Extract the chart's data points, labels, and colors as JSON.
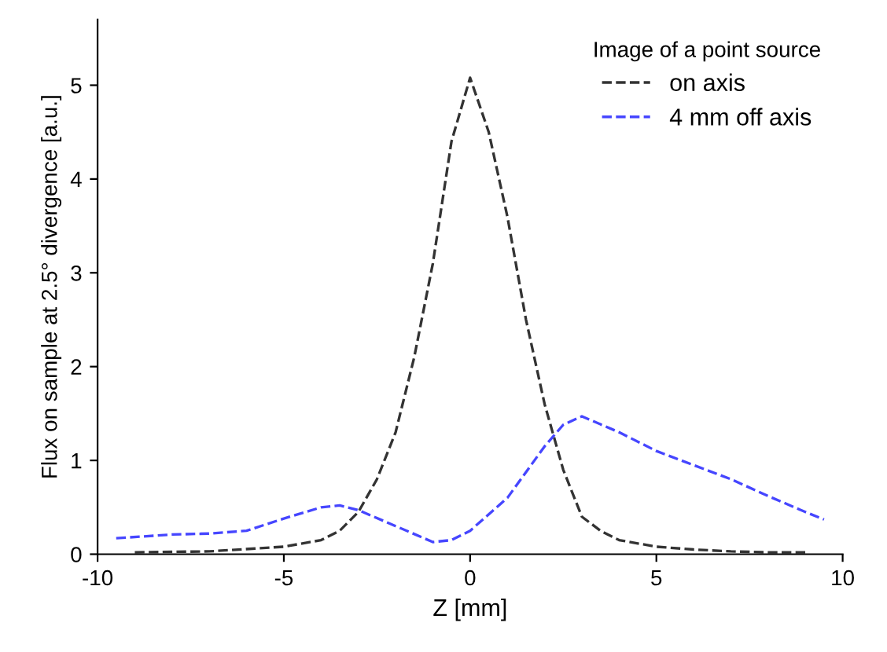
{
  "chart_data": {
    "type": "line",
    "xlabel": "Z [mm]",
    "ylabel": "Flux on sample at 2.5° divergence [a.u.]",
    "legend_title": "Image of a point source",
    "legend": "top right",
    "line_style": "dashed",
    "grid": false,
    "xlim": [
      -10,
      10
    ],
    "xticks": [
      -10,
      -5,
      0,
      5,
      10
    ],
    "ylim": [
      0,
      5.7
    ],
    "yticks": [
      0,
      1,
      2,
      3,
      4,
      5
    ],
    "series": [
      {
        "name": "on axis",
        "color": "#333333",
        "x": [
          -9,
          -7,
          -5,
          -4,
          -3.5,
          -3,
          -2.5,
          -2,
          -1.5,
          -1,
          -0.5,
          0,
          0.5,
          1,
          1.5,
          2,
          2.5,
          3,
          3.5,
          4,
          5,
          6,
          7,
          8,
          9
        ],
        "values": [
          0.02,
          0.03,
          0.08,
          0.15,
          0.25,
          0.45,
          0.8,
          1.3,
          2.1,
          3.1,
          4.4,
          5.08,
          4.5,
          3.6,
          2.5,
          1.6,
          0.9,
          0.4,
          0.25,
          0.15,
          0.08,
          0.05,
          0.03,
          0.02,
          0.02
        ]
      },
      {
        "name": "4 mm off axis",
        "color": "#4646ff",
        "x": [
          -9.5,
          -8,
          -7,
          -6,
          -5,
          -4,
          -3.5,
          -3,
          -2,
          -1,
          -0.5,
          0,
          1,
          2,
          2.5,
          3,
          4,
          5,
          6,
          7,
          8,
          9,
          9.5
        ],
        "values": [
          0.17,
          0.21,
          0.22,
          0.25,
          0.38,
          0.5,
          0.52,
          0.47,
          0.3,
          0.13,
          0.15,
          0.25,
          0.6,
          1.15,
          1.38,
          1.47,
          1.3,
          1.1,
          0.95,
          0.8,
          0.62,
          0.45,
          0.37
        ]
      }
    ]
  }
}
